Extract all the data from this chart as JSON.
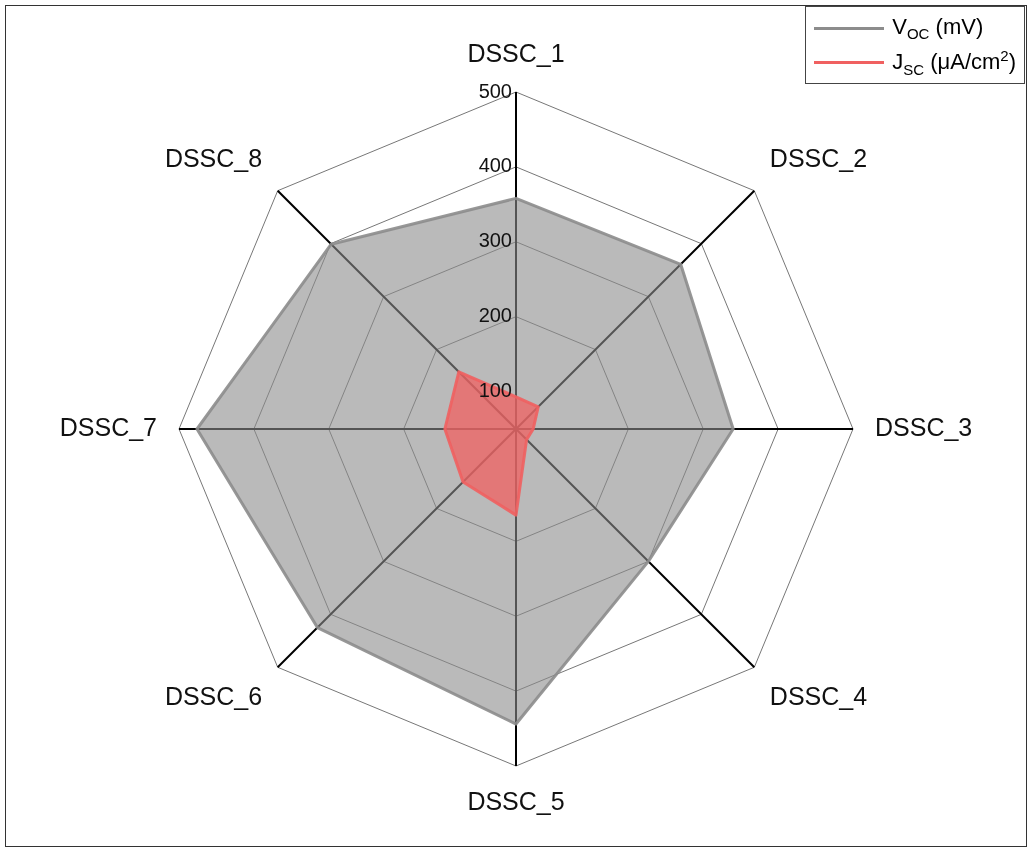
{
  "chart_data": {
    "type": "radar",
    "categories": [
      "DSSC_1",
      "DSSC_2",
      "DSSC_3",
      "DSSC_4",
      "DSSC_5",
      "DSSC_6",
      "DSSC_7",
      "DSSC_8"
    ],
    "series": [
      {
        "name": "V$_{OC}$ (mV)",
        "color": "#8c8c8c",
        "values": [
          358,
          361,
          340,
          300,
          444,
          425,
          476,
          399
        ]
      },
      {
        "name": "J$_{SC}$ (μA/cm$^{2}$)",
        "color": "#f06060",
        "values": [
          93,
          92,
          73,
          70,
          165,
          150,
          145,
          158
        ]
      }
    ],
    "ylim": [
      50,
      500
    ],
    "yticks": [
      100,
      200,
      300,
      400,
      500
    ],
    "grid": true,
    "legend": "top right",
    "marker": "none"
  }
}
